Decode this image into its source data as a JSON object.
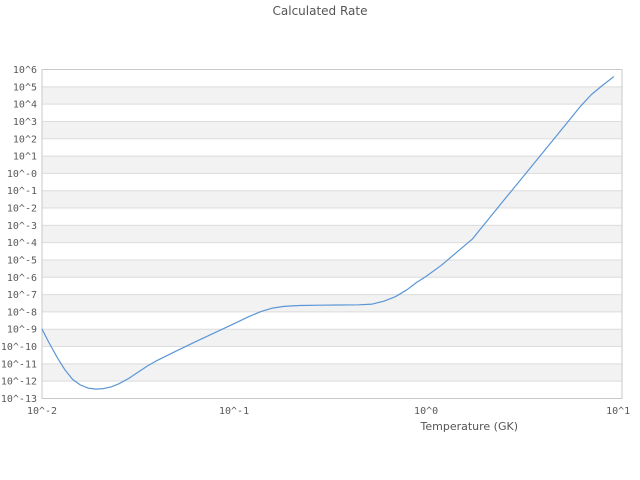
{
  "chart_data": {
    "type": "line",
    "title": "Calculated Rate",
    "xlabel": "Temperature (GK)",
    "ylabel": "",
    "x_scale": "log10",
    "y_scale": "log10",
    "xlim_log10": [
      -2,
      1.02
    ],
    "ylim_log10": [
      -13,
      6
    ],
    "grid": "horizontal-decade-lines, alternating decade bands, no vertical gridlines",
    "legend": "none",
    "x_ticks": [
      {
        "log10": -2,
        "label": "10^-2"
      },
      {
        "log10": -1,
        "label": "10^-1"
      },
      {
        "log10": 0,
        "label": "10^0"
      },
      {
        "log10": 1,
        "label": "10^1"
      }
    ],
    "y_ticks": [
      {
        "log10": 6,
        "label": "10^6"
      },
      {
        "log10": 5,
        "label": "10^5"
      },
      {
        "log10": 4,
        "label": "10^4"
      },
      {
        "log10": 3,
        "label": "10^3"
      },
      {
        "log10": 2,
        "label": "10^2"
      },
      {
        "log10": 1,
        "label": "10^1"
      },
      {
        "log10": 0,
        "label": "10^-0"
      },
      {
        "log10": -1,
        "label": "10^-1"
      },
      {
        "log10": -2,
        "label": "10^-2"
      },
      {
        "log10": -3,
        "label": "10^-3"
      },
      {
        "log10": -4,
        "label": "10^-4"
      },
      {
        "log10": -5,
        "label": "10^-5"
      },
      {
        "log10": -6,
        "label": "10^-6"
      },
      {
        "log10": -7,
        "label": "10^-7"
      },
      {
        "log10": -8,
        "label": "10^-8"
      },
      {
        "log10": -9,
        "label": "10^-9"
      },
      {
        "log10": -10,
        "label": "10^-10"
      },
      {
        "log10": -11,
        "label": "10^-11"
      },
      {
        "log10": -12,
        "label": "10^-12"
      },
      {
        "log10": -13,
        "label": "10^-13"
      }
    ],
    "background_bands": {
      "colors": [
        "#ffffff",
        "#f2f2f2"
      ]
    },
    "colors": {
      "gridline": "#dcdcdc",
      "plot_border": "#c9c9c9",
      "text": "#595959",
      "curve": "#5b96d6"
    },
    "series": [
      {
        "name": "calculated_rate",
        "color": "#5b96d6",
        "points_log10": [
          [
            -2.0,
            -9.0
          ],
          [
            -1.96,
            -9.85
          ],
          [
            -1.92,
            -10.65
          ],
          [
            -1.88,
            -11.35
          ],
          [
            -1.84,
            -11.9
          ],
          [
            -1.8,
            -12.22
          ],
          [
            -1.76,
            -12.4
          ],
          [
            -1.72,
            -12.46
          ],
          [
            -1.68,
            -12.43
          ],
          [
            -1.64,
            -12.33
          ],
          [
            -1.6,
            -12.15
          ],
          [
            -1.55,
            -11.85
          ],
          [
            -1.5,
            -11.48
          ],
          [
            -1.45,
            -11.12
          ],
          [
            -1.4,
            -10.8
          ],
          [
            -1.3,
            -10.25
          ],
          [
            -1.2,
            -9.72
          ],
          [
            -1.1,
            -9.2
          ],
          [
            -1.0,
            -8.68
          ],
          [
            -0.92,
            -8.25
          ],
          [
            -0.86,
            -7.98
          ],
          [
            -0.8,
            -7.78
          ],
          [
            -0.74,
            -7.68
          ],
          [
            -0.66,
            -7.63
          ],
          [
            -0.55,
            -7.61
          ],
          [
            -0.45,
            -7.6
          ],
          [
            -0.35,
            -7.59
          ],
          [
            -0.28,
            -7.55
          ],
          [
            -0.22,
            -7.38
          ],
          [
            -0.16,
            -7.12
          ],
          [
            -0.1,
            -6.72
          ],
          [
            -0.05,
            -6.3
          ],
          [
            0.0,
            -5.95
          ],
          [
            0.08,
            -5.3
          ],
          [
            0.16,
            -4.55
          ],
          [
            0.24,
            -3.8
          ],
          [
            0.32,
            -2.71
          ],
          [
            0.4,
            -1.62
          ],
          [
            0.48,
            -0.53
          ],
          [
            0.56,
            0.56
          ],
          [
            0.64,
            1.64
          ],
          [
            0.72,
            2.73
          ],
          [
            0.8,
            3.82
          ],
          [
            0.86,
            4.55
          ],
          [
            0.92,
            5.1
          ],
          [
            0.976,
            5.57
          ]
        ]
      }
    ]
  }
}
